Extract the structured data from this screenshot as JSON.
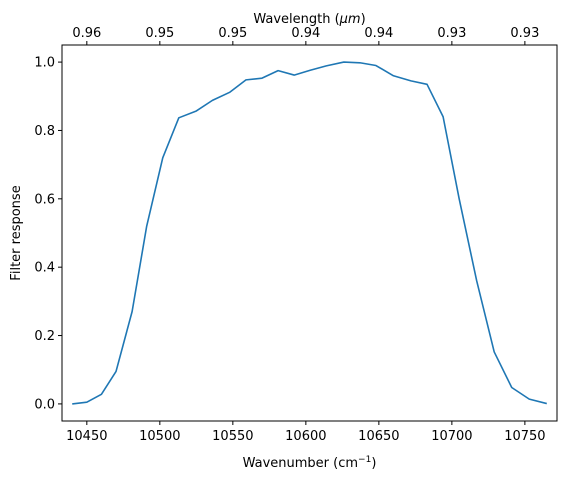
{
  "chart_data": {
    "type": "line",
    "grid": false,
    "xlabel": {
      "main": "Wavenumber (cm",
      "sup": "−1",
      "suffix": ")"
    },
    "ylabel": "Filter response",
    "top_xlabel": {
      "prefix": "Wavelength (",
      "unit": "μm",
      "suffix": ")"
    },
    "xlim": [
      10433,
      10772
    ],
    "ylim": [
      -0.05,
      1.05
    ],
    "x_ticks": [
      10450,
      10500,
      10550,
      10600,
      10650,
      10700,
      10750
    ],
    "x_tick_labels": [
      "10450",
      "10500",
      "10550",
      "10600",
      "10650",
      "10700",
      "10750"
    ],
    "y_ticks": [
      0.0,
      0.2,
      0.4,
      0.6,
      0.8,
      1.0
    ],
    "y_tick_labels": [
      "0.0",
      "0.2",
      "0.4",
      "0.6",
      "0.8",
      "1.0"
    ],
    "top_x_ticks": [
      10450,
      10500,
      10550,
      10600,
      10650,
      10700,
      10750
    ],
    "top_x_tick_labels": [
      "0.96",
      "0.95",
      "0.95",
      "0.94",
      "0.94",
      "0.93",
      "0.93"
    ],
    "line_color": "#1f77b4",
    "series": [
      {
        "x": [
          10440,
          10450,
          10460,
          10470,
          10481,
          10491,
          10502,
          10513,
          10525,
          10536,
          10548,
          10559,
          10570,
          10581,
          10592,
          10603,
          10614,
          10626,
          10637,
          10648,
          10660,
          10672,
          10683,
          10694,
          10705,
          10717,
          10729,
          10741,
          10753,
          10765
        ],
        "y": [
          0.0,
          0.005,
          0.028,
          0.095,
          0.27,
          0.52,
          0.72,
          0.837,
          0.857,
          0.888,
          0.912,
          0.948,
          0.953,
          0.975,
          0.962,
          0.976,
          0.989,
          1.0,
          0.998,
          0.99,
          0.96,
          0.945,
          0.935,
          0.84,
          0.6,
          0.36,
          0.152,
          0.048,
          0.014,
          0.001
        ]
      }
    ]
  }
}
